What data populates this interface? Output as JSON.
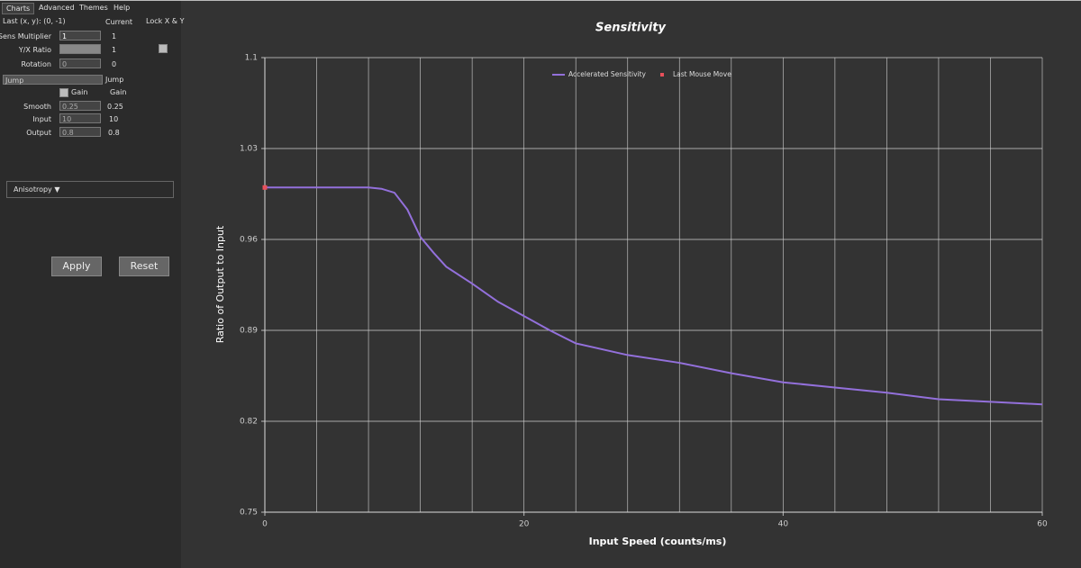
{
  "menu": [
    "Charts",
    "Advanced",
    "Themes",
    "Help"
  ],
  "panel": {
    "last": "Last (x, y): (0, -1)",
    "current_header": "Current",
    "lock": "Lock X & Y",
    "rows": [
      {
        "label": "Sens Multiplier",
        "input": "1",
        "current": "1"
      },
      {
        "label": "Y/X Ratio",
        "current": "1"
      },
      {
        "label": "Rotation",
        "input": "0",
        "current": "0"
      }
    ],
    "mode_select": "Jump",
    "mode_current": "Jump",
    "gain": "Gain",
    "gain_current": "Gain",
    "params": [
      {
        "label": "Smooth",
        "input": "0.25",
        "current": "0.25"
      },
      {
        "label": "Input",
        "input": "10",
        "current": "10"
      },
      {
        "label": "Output",
        "input": "0.8",
        "current": "0.8"
      }
    ],
    "anisotropy": "Anisotropy ▼",
    "apply": "Apply",
    "reset": "Reset"
  },
  "chart_data": {
    "type": "line",
    "title": "Sensitivity",
    "x_label": "Input Speed (counts/ms)",
    "y_label": "Ratio of Output to Input",
    "xlim": [
      0,
      60
    ],
    "ylim": [
      0.75,
      1.1
    ],
    "xticks": [
      0,
      20,
      40,
      60
    ],
    "yticks": [
      0.75,
      0.82,
      0.89,
      0.96,
      1.03,
      1.1
    ],
    "xgrid": [
      0,
      4,
      8,
      12,
      16,
      20,
      24,
      28,
      32,
      36,
      40,
      44,
      48,
      52,
      56,
      60
    ],
    "grid": true,
    "legend": "top",
    "series": [
      {
        "name": "Accelerated Sensitivity",
        "color": "#9370db",
        "x": [
          0,
          2,
          4,
          6,
          8,
          9,
          10,
          11,
          12,
          13,
          14,
          16,
          18,
          20,
          22,
          24,
          28,
          32,
          36,
          40,
          44,
          48,
          52,
          56,
          60
        ],
        "values": [
          1.0,
          1.0,
          1.0,
          1.0,
          1.0,
          0.999,
          0.996,
          0.983,
          0.962,
          0.95,
          0.939,
          0.926,
          0.912,
          0.901,
          0.89,
          0.88,
          0.871,
          0.865,
          0.857,
          0.85,
          0.846,
          0.842,
          0.837,
          0.835,
          0.833
        ]
      },
      {
        "name": "Last Mouse Move",
        "color": "#e8505b",
        "x": [
          0
        ],
        "values": [
          1.0
        ]
      }
    ]
  }
}
